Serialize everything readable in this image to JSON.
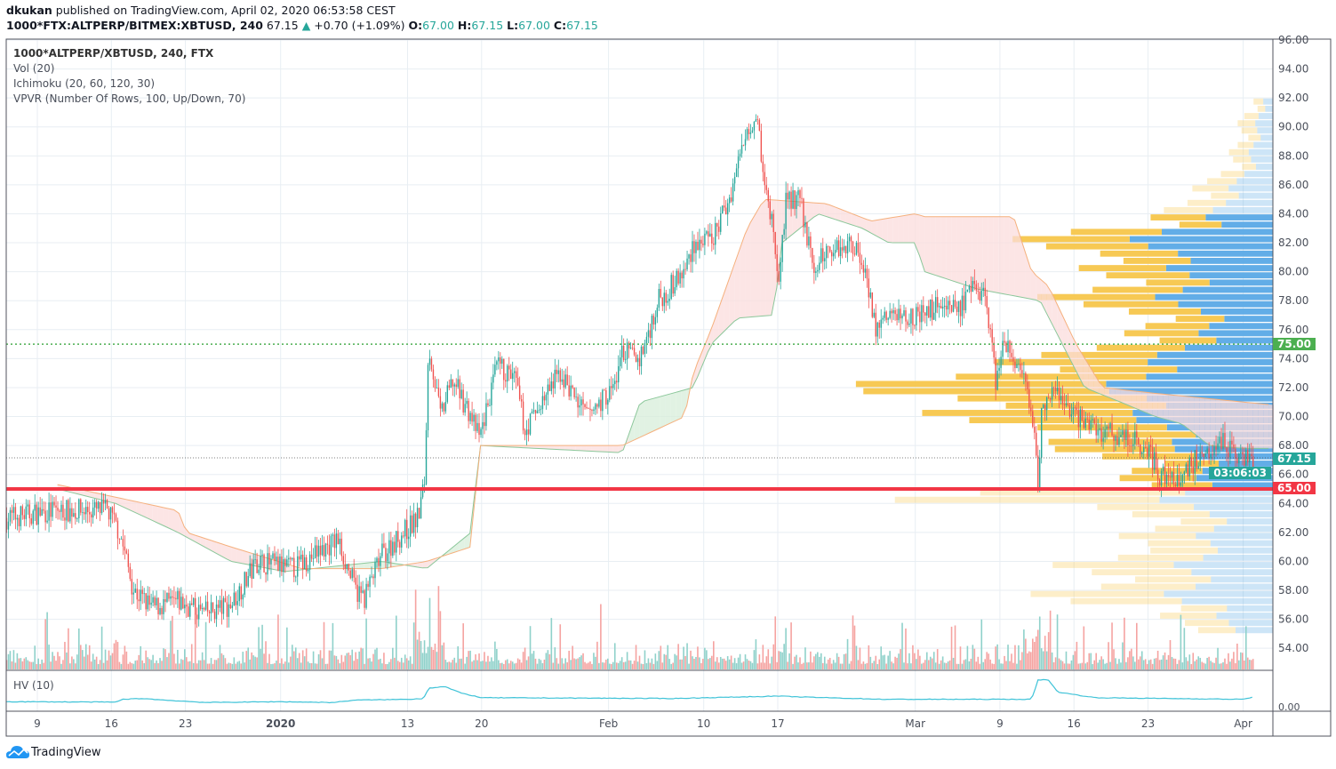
{
  "header": {
    "author": "dkukan",
    "published": "published on TradingView.com, April 02, 2020 06:53:58 CEST",
    "symbol": "1000*FTX:ALTPERP/BITMEX:XBTUSD, 240",
    "last": "67.15",
    "change": "+0.70 (+1.09%)",
    "o_label": "O:",
    "o": "67.00",
    "h_label": "H:",
    "h": "67.15",
    "l_label": "L:",
    "l": "67.00",
    "c_label": "C:",
    "c": "67.15"
  },
  "legend": {
    "title": "1000*ALTPERP/XBTUSD, 240, FTX",
    "items": [
      "Vol (20)",
      "Ichimoku (20, 60, 120, 30)",
      "VPVR (Number Of Rows, 100, Up/Down, 70)"
    ]
  },
  "hv_pane": {
    "label": "HV (10)",
    "axis_label": "0.00"
  },
  "price_tags": {
    "line_75": "75.00",
    "last_price": "67.15",
    "countdown": "03:06:03",
    "line_65": "65.00"
  },
  "colors": {
    "up": "#26a69a",
    "down": "#ef5350",
    "vp_up": "#5aa9e6",
    "vp_down": "#f7c64b",
    "green_line": "#4caf50",
    "red_line": "#f23645",
    "hv": "#3fc3d8",
    "tag_teal": "#26a69a"
  },
  "brand": {
    "name": "TradingView"
  },
  "chart_data": {
    "type": "candlestick",
    "timeframe": "240",
    "x_unit": "days since Dec 9 2019",
    "y_ticks": [
      "96.00",
      "94.00",
      "92.00",
      "90.00",
      "88.00",
      "86.00",
      "84.00",
      "82.00",
      "80.00",
      "78.00",
      "76.00",
      "74.00",
      "72.00",
      "70.00",
      "68.00",
      "66.00",
      "64.00",
      "62.00",
      "60.00",
      "58.00",
      "56.00",
      "54.00"
    ],
    "x_ticks": [
      {
        "label": "9",
        "day": 0
      },
      {
        "label": "16",
        "day": 7
      },
      {
        "label": "23",
        "day": 14
      },
      {
        "label": "2020",
        "day": 23,
        "bold": true
      },
      {
        "label": "13",
        "day": 35
      },
      {
        "label": "20",
        "day": 42
      },
      {
        "label": "Feb",
        "day": 54
      },
      {
        "label": "10",
        "day": 63
      },
      {
        "label": "17",
        "day": 70
      },
      {
        "label": "Mar",
        "day": 83
      },
      {
        "label": "9",
        "day": 91
      },
      {
        "label": "16",
        "day": 98
      },
      {
        "label": "23",
        "day": 105
      },
      {
        "label": "Apr",
        "day": 114
      }
    ],
    "ylim": [
      53,
      96
    ],
    "xlim": [
      -2.9,
      116.8
    ],
    "horizontal_lines": [
      {
        "price": 75,
        "style": "dotted",
        "color": "#4caf50"
      },
      {
        "price": 65,
        "style": "solid",
        "color": "#f23645"
      },
      {
        "price": 67.15,
        "style": "dotted",
        "color": "#555"
      }
    ],
    "price_path": [
      [
        -2.9,
        63
      ],
      [
        1.5,
        63.5
      ],
      [
        6.6,
        63.5
      ],
      [
        7.8,
        62
      ],
      [
        9.1,
        58
      ],
      [
        10.8,
        56.8
      ],
      [
        13.3,
        57.2
      ],
      [
        15.8,
        56.4
      ],
      [
        18.3,
        57
      ],
      [
        20.8,
        60
      ],
      [
        24.2,
        59.5
      ],
      [
        28.4,
        61.5
      ],
      [
        30.1,
        58
      ],
      [
        30.9,
        57.5
      ],
      [
        32.6,
        60.5
      ],
      [
        36,
        63
      ],
      [
        36.6,
        65.5
      ],
      [
        37,
        75
      ],
      [
        38.1,
        70
      ],
      [
        39.3,
        72.5
      ],
      [
        41,
        70
      ],
      [
        41.8,
        68.5
      ],
      [
        43.5,
        73.5
      ],
      [
        45.2,
        72.5
      ],
      [
        46.1,
        69
      ],
      [
        47.7,
        71
      ],
      [
        49.4,
        73
      ],
      [
        51.9,
        70
      ],
      [
        54.5,
        72
      ],
      [
        55.3,
        74.5
      ],
      [
        57,
        74
      ],
      [
        58.7,
        78
      ],
      [
        61.2,
        80
      ],
      [
        62,
        82
      ],
      [
        63.7,
        82
      ],
      [
        65.4,
        85
      ],
      [
        67.1,
        90
      ],
      [
        68.1,
        91
      ],
      [
        68.7,
        86
      ],
      [
        69.6,
        83
      ],
      [
        70,
        79
      ],
      [
        70.8,
        85
      ],
      [
        72.1,
        85
      ],
      [
        73.4,
        80
      ],
      [
        74.6,
        81.5
      ],
      [
        77.1,
        82
      ],
      [
        78.4,
        80
      ],
      [
        79.2,
        76
      ],
      [
        80.5,
        77
      ],
      [
        82.2,
        77
      ],
      [
        83.9,
        77
      ],
      [
        85.5,
        78
      ],
      [
        87.2,
        77.5
      ],
      [
        88.9,
        79
      ],
      [
        89.7,
        78
      ],
      [
        90.6,
        72.5
      ],
      [
        91.4,
        75
      ],
      [
        93.1,
        73
      ],
      [
        94.4,
        68
      ],
      [
        94.5,
        64
      ],
      [
        95,
        71
      ],
      [
        96.5,
        71.5
      ],
      [
        98.2,
        70
      ],
      [
        100.7,
        69
      ],
      [
        103.2,
        68.5
      ],
      [
        104.9,
        68
      ],
      [
        106.1,
        66
      ],
      [
        107.8,
        65.5
      ],
      [
        109.5,
        67
      ],
      [
        111.6,
        68.5
      ],
      [
        113.3,
        67.5
      ],
      [
        115,
        67.15
      ]
    ],
    "ichimoku": {
      "span_a": [
        [
          1.9,
          65
        ],
        [
          7.4,
          64
        ],
        [
          13.3,
          62
        ],
        [
          18.3,
          60
        ],
        [
          23.4,
          59.3
        ],
        [
          32.6,
          60
        ],
        [
          36.8,
          59.5
        ],
        [
          41,
          62
        ],
        [
          41.8,
          68
        ],
        [
          55.3,
          67.5
        ],
        [
          57,
          71
        ],
        [
          62,
          72
        ],
        [
          63.7,
          75
        ],
        [
          66.2,
          76.8
        ],
        [
          69.6,
          77
        ],
        [
          70.4,
          82
        ],
        [
          73.8,
          84
        ],
        [
          78,
          83
        ],
        [
          80.5,
          82
        ],
        [
          83,
          82
        ],
        [
          83.9,
          80
        ],
        [
          88.9,
          78.8
        ],
        [
          94.8,
          78
        ],
        [
          99,
          72
        ],
        [
          102.4,
          71
        ],
        [
          105.7,
          70
        ],
        [
          108.2,
          69.5
        ],
        [
          110.8,
          68
        ],
        [
          114.1,
          67.8
        ],
        [
          116.8,
          67.8
        ]
      ],
      "span_b": [
        [
          1.9,
          65.3
        ],
        [
          13.3,
          63.5
        ],
        [
          14.1,
          62
        ],
        [
          18.3,
          61
        ],
        [
          25,
          59.5
        ],
        [
          32.6,
          59.5
        ],
        [
          36.8,
          60
        ],
        [
          41,
          61
        ],
        [
          41.8,
          68
        ],
        [
          55.3,
          68
        ],
        [
          61.2,
          70
        ],
        [
          62,
          73
        ],
        [
          63.7,
          76
        ],
        [
          67.1,
          83
        ],
        [
          68.7,
          85
        ],
        [
          74.6,
          84.7
        ],
        [
          78.8,
          83.5
        ],
        [
          83,
          84
        ],
        [
          83.9,
          83.8
        ],
        [
          92.3,
          83.8
        ],
        [
          94,
          80
        ],
        [
          95.6,
          79
        ],
        [
          98.2,
          75
        ],
        [
          100.7,
          72
        ],
        [
          103.2,
          71.8
        ],
        [
          105.7,
          71.6
        ],
        [
          116.8,
          70.8
        ]
      ]
    },
    "volume_profile": {
      "row_prices": [
        55,
        56,
        57,
        58,
        59,
        60,
        61,
        62,
        63,
        64,
        65,
        66,
        67,
        68,
        69,
        70,
        71,
        72,
        73,
        74,
        75,
        76,
        77,
        78,
        79,
        80,
        81,
        82,
        83,
        84,
        85,
        86,
        87,
        88,
        89,
        90,
        91
      ],
      "relative_volume": [
        20,
        30,
        55,
        45,
        50,
        40,
        35,
        30,
        40,
        95,
        35,
        35,
        50,
        55,
        70,
        85,
        95,
        100,
        65,
        55,
        35,
        30,
        45,
        55,
        40,
        45,
        55,
        60,
        30,
        25,
        20,
        15,
        10,
        10,
        8,
        8,
        5
      ],
      "up_fraction": [
        0.5,
        0.5,
        0.45,
        0.45,
        0.45,
        0.45,
        0.5,
        0.5,
        0.45,
        0.3,
        0.5,
        0.5,
        0.45,
        0.45,
        0.45,
        0.4,
        0.4,
        0.4,
        0.45,
        0.5,
        0.5,
        0.5,
        0.5,
        0.5,
        0.5,
        0.55,
        0.55,
        0.55,
        0.55,
        0.55,
        0.55,
        0.55,
        0.55,
        0.55,
        0.5,
        0.5,
        0.5
      ],
      "value_area": [
        65,
        84
      ]
    },
    "hv_path": [
      [
        -2.9,
        3
      ],
      [
        7.5,
        2.5
      ],
      [
        8,
        6
      ],
      [
        10,
        7
      ],
      [
        12,
        5
      ],
      [
        16,
        2
      ],
      [
        23,
        3
      ],
      [
        28,
        2
      ],
      [
        30,
        5
      ],
      [
        35,
        6
      ],
      [
        36.5,
        7
      ],
      [
        37,
        20
      ],
      [
        38.5,
        22
      ],
      [
        40,
        14
      ],
      [
        42,
        8
      ],
      [
        60,
        7
      ],
      [
        70,
        10
      ],
      [
        72,
        9
      ],
      [
        80,
        6
      ],
      [
        90,
        6
      ],
      [
        94,
        6
      ],
      [
        94.6,
        30
      ],
      [
        95.5,
        31
      ],
      [
        96.5,
        15
      ],
      [
        100,
        8
      ],
      [
        114,
        6
      ],
      [
        115,
        9
      ]
    ]
  }
}
